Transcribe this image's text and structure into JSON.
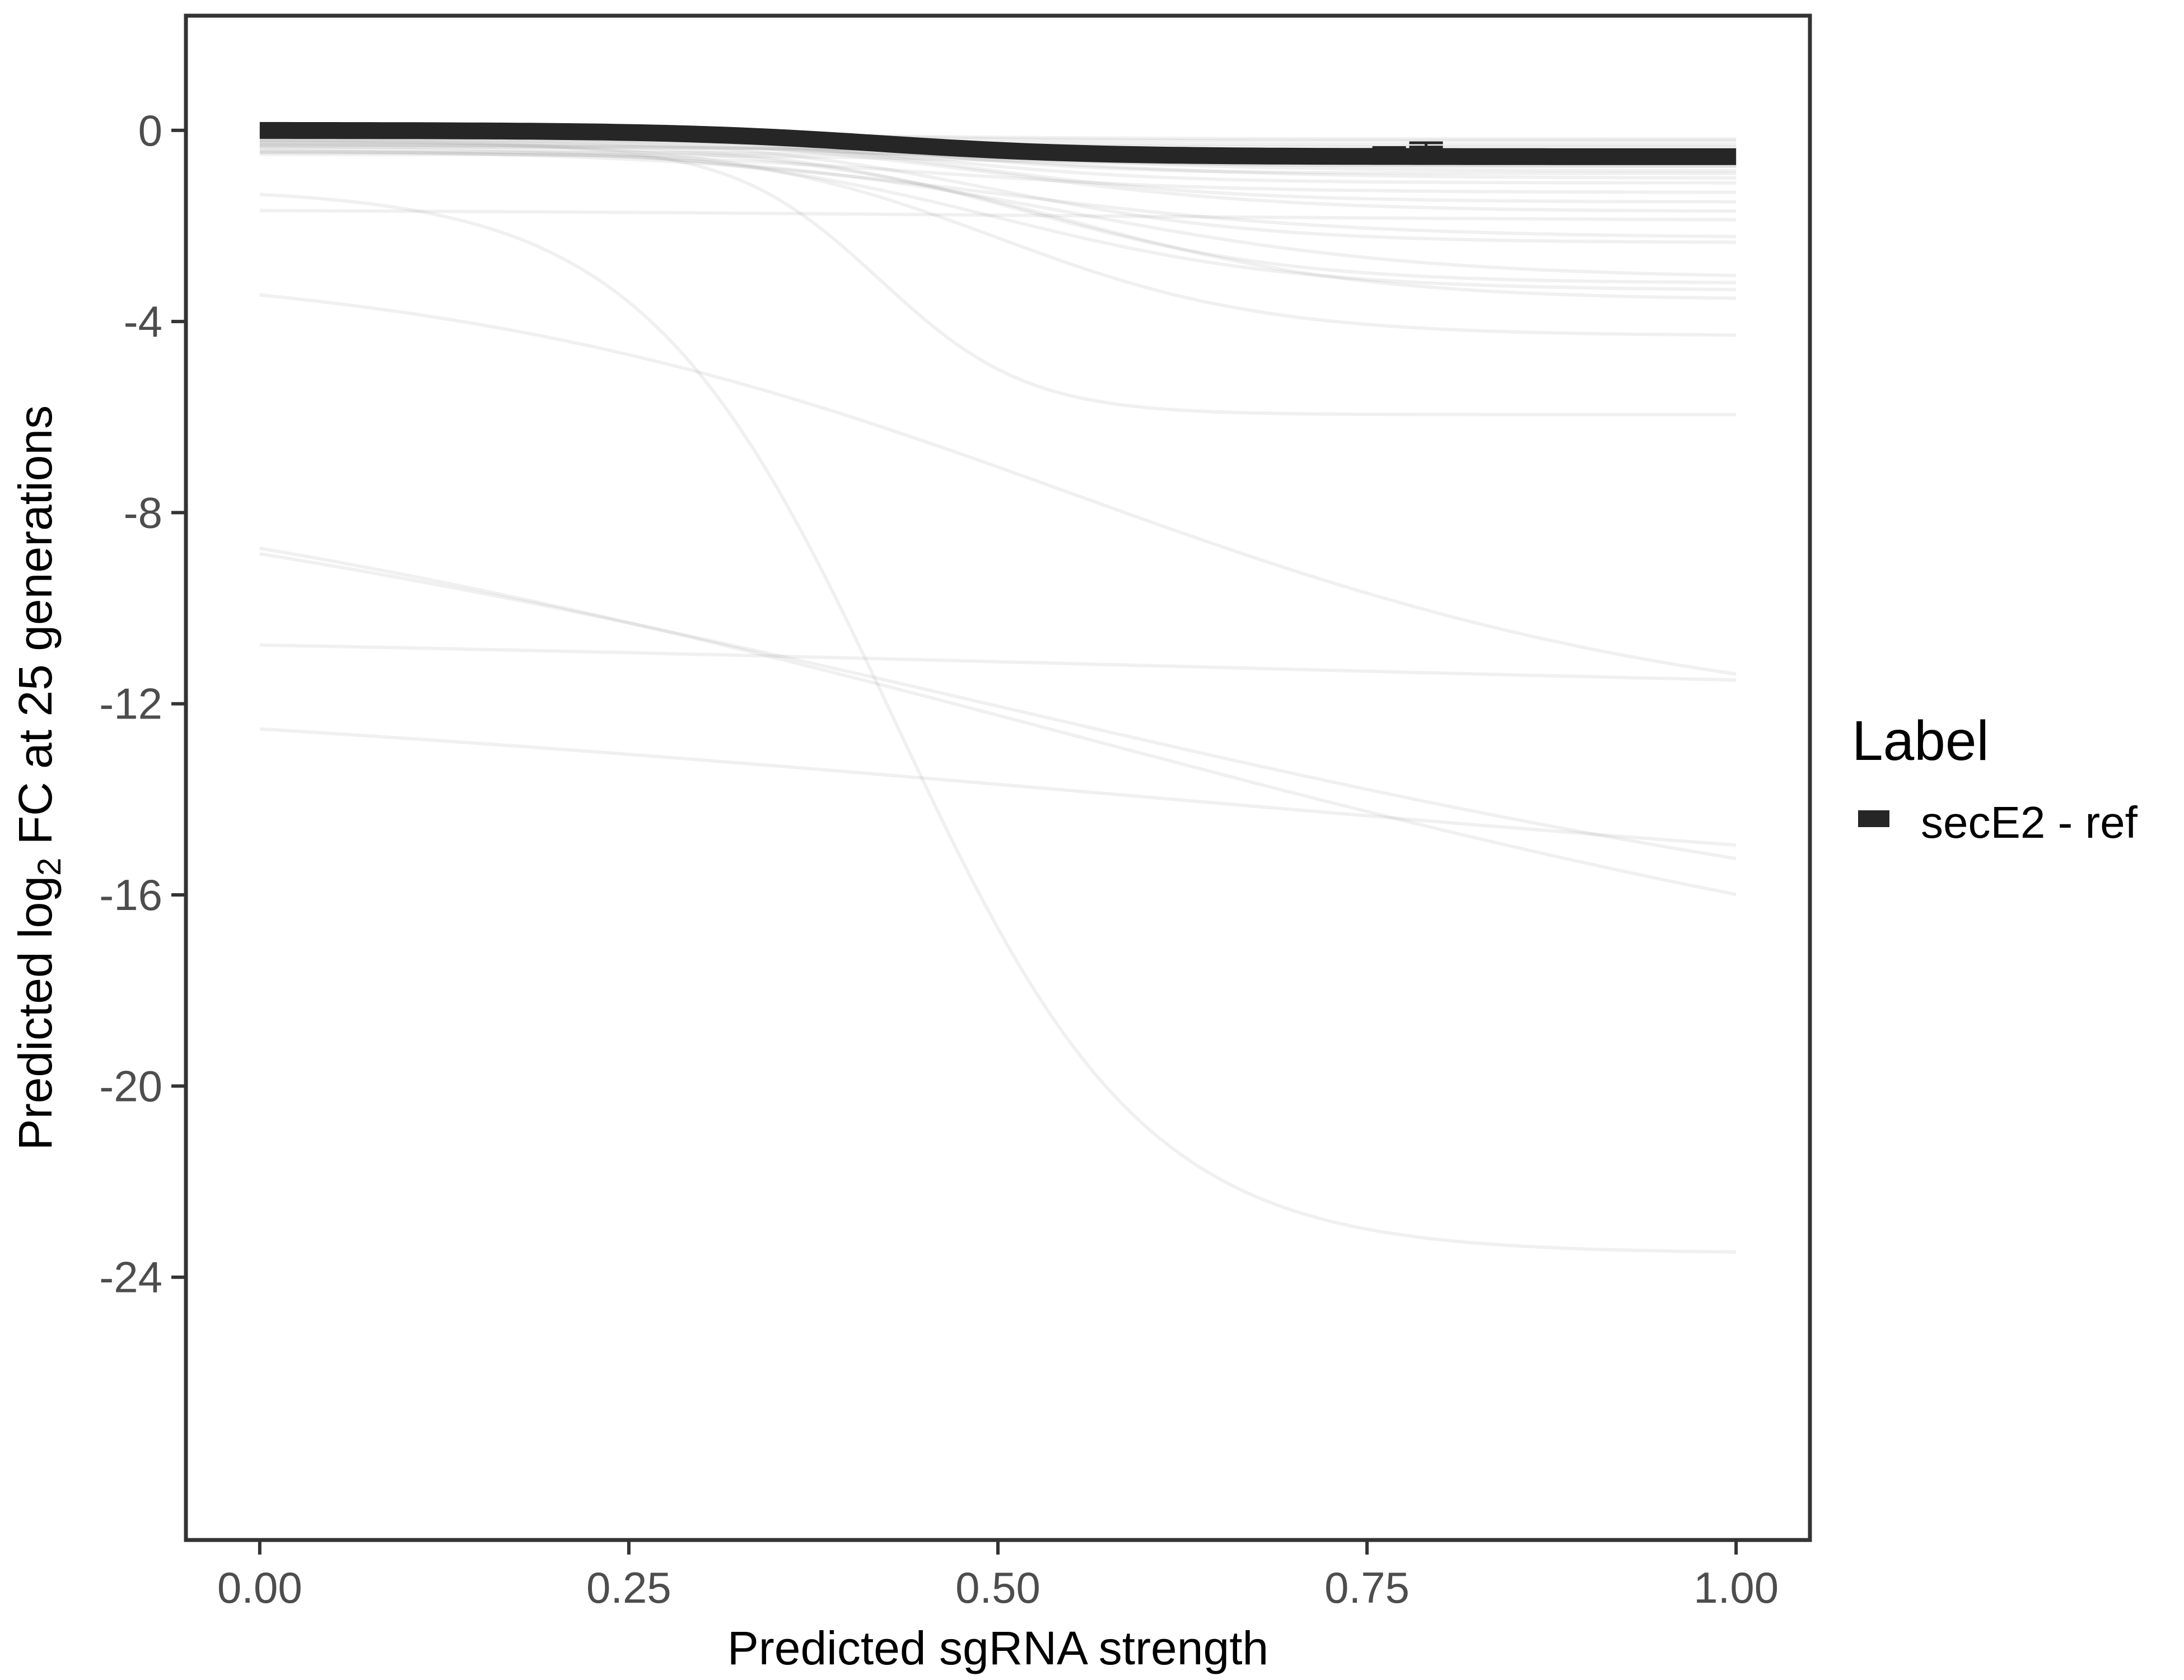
{
  "chart_data": {
    "type": "line",
    "xlabel": "Predicted sgRNA strength",
    "ylabel": {
      "prefix": "Predicted  log",
      "subscript": "2",
      "suffix": " FC at 25 generations"
    },
    "xlim": [
      -0.05,
      1.05
    ],
    "ylim": [
      -29.5,
      2.4
    ],
    "x_ticks": [
      0.0,
      0.25,
      0.5,
      0.75,
      1.0
    ],
    "x_tick_labels": [
      "0.00",
      "0.25",
      "0.50",
      "0.75",
      "1.00"
    ],
    "y_ticks": [
      0,
      -4,
      -8,
      -12,
      -16,
      -20,
      -24
    ],
    "y_tick_labels": [
      "0",
      "-4",
      "-8",
      "-12",
      "-16",
      "-20",
      "-24"
    ],
    "grid": false,
    "legend": {
      "title": "Label",
      "placement": "right",
      "entries": [
        {
          "name": "secE2 - ref",
          "color": "#262626"
        }
      ]
    },
    "colors": {
      "highlight": "#262626",
      "background_curves": "#808080",
      "axis": "#333333"
    },
    "highlight_series": {
      "name": "secE2 - ref",
      "y0": 0.0,
      "yinf": -0.55,
      "midpoint": 0.42,
      "width": 0.07,
      "error_bars": [
        {
          "x": 0.765,
          "low": -0.42,
          "high": -0.36
        },
        {
          "x": 0.79,
          "low": -0.35,
          "high": -0.26
        }
      ]
    },
    "background_series": [
      {
        "y0": -1.2,
        "yinf": -23.5,
        "midpoint": 0.43,
        "width": 0.085
      },
      {
        "y0": -2.7,
        "yinf": -12.5,
        "midpoint": 0.55,
        "width": 0.22
      },
      {
        "y0": -6.1,
        "yinf": -19.2,
        "midpoint": 0.55,
        "width": 0.4
      },
      {
        "y0": -6.3,
        "yinf": -17.8,
        "midpoint": 0.5,
        "width": 0.4
      },
      {
        "y0": -10.4,
        "yinf": -12.0,
        "midpoint": 0.6,
        "width": 0.5
      },
      {
        "y0": -11.3,
        "yinf": -16.6,
        "midpoint": 0.6,
        "width": 0.5
      },
      {
        "y0": -0.3,
        "yinf": -5.95,
        "midpoint": 0.42,
        "width": 0.05
      },
      {
        "y0": -0.2,
        "yinf": -4.3,
        "midpoint": 0.5,
        "width": 0.09
      },
      {
        "y0": -0.25,
        "yinf": -3.55,
        "midpoint": 0.55,
        "width": 0.1
      },
      {
        "y0": -0.3,
        "yinf": -3.35,
        "midpoint": 0.5,
        "width": 0.1
      },
      {
        "y0": -0.2,
        "yinf": -3.2,
        "midpoint": 0.52,
        "width": 0.09
      },
      {
        "y0": -0.35,
        "yinf": -3.1,
        "midpoint": 0.55,
        "width": 0.12
      },
      {
        "y0": -0.15,
        "yinf": -2.35,
        "midpoint": 0.5,
        "width": 0.09
      },
      {
        "y0": -0.4,
        "yinf": -2.25,
        "midpoint": 0.5,
        "width": 0.12
      },
      {
        "y0": -1.65,
        "yinf": -1.9,
        "midpoint": 0.5,
        "width": 0.25
      },
      {
        "y0": -0.1,
        "yinf": -1.7,
        "midpoint": 0.5,
        "width": 0.1
      },
      {
        "y0": -0.05,
        "yinf": -1.5,
        "midpoint": 0.48,
        "width": 0.09
      },
      {
        "y0": -0.45,
        "yinf": -1.3,
        "midpoint": 0.45,
        "width": 0.1
      },
      {
        "y0": -0.1,
        "yinf": -1.1,
        "midpoint": 0.45,
        "width": 0.08
      },
      {
        "y0": -0.25,
        "yinf": -1.0,
        "midpoint": 0.5,
        "width": 0.1
      },
      {
        "y0": -0.05,
        "yinf": -0.9,
        "midpoint": 0.44,
        "width": 0.07
      },
      {
        "y0": -0.3,
        "yinf": -0.85,
        "midpoint": 0.5,
        "width": 0.1
      },
      {
        "y0": -0.15,
        "yinf": -0.75,
        "midpoint": 0.45,
        "width": 0.08
      },
      {
        "y0": -0.05,
        "yinf": -0.65,
        "midpoint": 0.42,
        "width": 0.07
      },
      {
        "y0": -0.2,
        "yinf": -0.6,
        "midpoint": 0.48,
        "width": 0.1
      },
      {
        "y0": -0.1,
        "yinf": -0.5,
        "midpoint": 0.45,
        "width": 0.08
      },
      {
        "y0": -0.02,
        "yinf": -0.42,
        "midpoint": 0.42,
        "width": 0.07
      },
      {
        "y0": -0.35,
        "yinf": -0.5,
        "midpoint": 0.5,
        "width": 0.1
      },
      {
        "y0": -0.05,
        "yinf": -0.35,
        "midpoint": 0.4,
        "width": 0.07
      },
      {
        "y0": -0.15,
        "yinf": -0.3,
        "midpoint": 0.45,
        "width": 0.08
      },
      {
        "y0": -0.02,
        "yinf": -0.22,
        "midpoint": 0.4,
        "width": 0.07
      },
      {
        "y0": -0.08,
        "yinf": -0.18,
        "midpoint": 0.45,
        "width": 0.08
      },
      {
        "y0": -0.5,
        "yinf": -0.75,
        "midpoint": 0.5,
        "width": 0.1
      },
      {
        "y0": -0.45,
        "yinf": -0.62,
        "midpoint": 0.5,
        "width": 0.1
      }
    ]
  }
}
